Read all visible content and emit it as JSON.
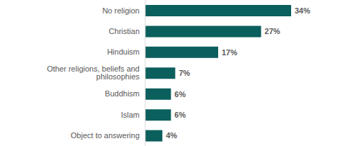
{
  "chart_data": {
    "type": "bar",
    "orientation": "horizontal",
    "categories": [
      "No religion",
      "Christian",
      "Hinduism",
      "Other religions, beliefs and philosophies",
      "Buddhism",
      "Islam",
      "Object to answering"
    ],
    "values": [
      34,
      27,
      17,
      7,
      6,
      6,
      4
    ],
    "value_labels": [
      "34%",
      "27%",
      "17%",
      "7%",
      "6%",
      "6%",
      "4%"
    ],
    "color": "#0b5f5c",
    "data_labels": true,
    "tick_labels": "y",
    "grid": false
  }
}
